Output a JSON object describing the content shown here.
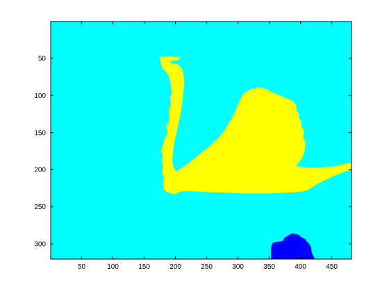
{
  "chart_data": {
    "type": "heatmap",
    "title": "",
    "xlabel": "",
    "ylabel": "",
    "xlim": [
      0.5,
      481.5
    ],
    "ylim": [
      320.5,
      0.5
    ],
    "y_direction": "reversed",
    "grid": false,
    "xticks": [
      50,
      100,
      150,
      200,
      250,
      300,
      350,
      400,
      450
    ],
    "yticks": [
      50,
      100,
      150,
      200,
      250,
      300
    ],
    "xtick_labels": [
      "50",
      "100",
      "150",
      "200",
      "250",
      "300",
      "350",
      "400",
      "450"
    ],
    "ytick_labels": [
      "50",
      "100",
      "150",
      "200",
      "250",
      "300"
    ],
    "colors": {
      "background": "#00ffff",
      "swan": "#ffff00",
      "rock": "#0000ff",
      "axes": "#000000"
    },
    "regions": [
      {
        "class": "background",
        "color": "#00ffff",
        "polygon": [
          [
            0.5,
            0.5
          ],
          [
            481.5,
            0.5
          ],
          [
            481.5,
            320.5
          ],
          [
            0.5,
            320.5
          ]
        ]
      },
      {
        "class": "swan",
        "color": "#ffff00",
        "polygon": [
          [
            174,
            48
          ],
          [
            188,
            47
          ],
          [
            198,
            48
          ],
          [
            208,
            49
          ],
          [
            203,
            53
          ],
          [
            195,
            53
          ],
          [
            190,
            56
          ],
          [
            195,
            57
          ],
          [
            203,
            58
          ],
          [
            210,
            63
          ],
          [
            213,
            72
          ],
          [
            214,
            85
          ],
          [
            212,
            100
          ],
          [
            210,
            115
          ],
          [
            207,
            130
          ],
          [
            203,
            145
          ],
          [
            199,
            160
          ],
          [
            196,
            175
          ],
          [
            195,
            188
          ],
          [
            197,
            198
          ],
          [
            202,
            202
          ],
          [
            213,
            196
          ],
          [
            233,
            183
          ],
          [
            252,
            170
          ],
          [
            268,
            158
          ],
          [
            280,
            145
          ],
          [
            290,
            131
          ],
          [
            298,
            117
          ],
          [
            304,
            104
          ],
          [
            311,
            96
          ],
          [
            322,
            91
          ],
          [
            334,
            89
          ],
          [
            345,
            91
          ],
          [
            355,
            96
          ],
          [
            367,
            100
          ],
          [
            378,
            104
          ],
          [
            388,
            108
          ],
          [
            394,
            114
          ],
          [
            393,
            120
          ],
          [
            398,
            125
          ],
          [
            397,
            130
          ],
          [
            402,
            136
          ],
          [
            401,
            142
          ],
          [
            406,
            148
          ],
          [
            404,
            155
          ],
          [
            408,
            163
          ],
          [
            407,
            172
          ],
          [
            405,
            180
          ],
          [
            401,
            186
          ],
          [
            397,
            190
          ],
          [
            393,
            195
          ],
          [
            410,
            197
          ],
          [
            430,
            197
          ],
          [
            448,
            196
          ],
          [
            463,
            194
          ],
          [
            475,
            191
          ],
          [
            481.5,
            191
          ],
          [
            481.5,
            200
          ],
          [
            470,
            203
          ],
          [
            455,
            208
          ],
          [
            440,
            214
          ],
          [
            427,
            219
          ],
          [
            418,
            224
          ],
          [
            410,
            228
          ],
          [
            400,
            230
          ],
          [
            380,
            231
          ],
          [
            350,
            232
          ],
          [
            310,
            232
          ],
          [
            275,
            231
          ],
          [
            245,
            230
          ],
          [
            225,
            229
          ],
          [
            210,
            229
          ],
          [
            203,
            231
          ],
          [
            200,
            233
          ],
          [
            193,
            232
          ],
          [
            186,
            230
          ],
          [
            182,
            227
          ],
          [
            180,
            220
          ],
          [
            182,
            212
          ],
          [
            179,
            205
          ],
          [
            180,
            195
          ],
          [
            178,
            188
          ],
          [
            180,
            181
          ],
          [
            177,
            174
          ],
          [
            180,
            166
          ],
          [
            183,
            158
          ],
          [
            187,
            150
          ],
          [
            185,
            142
          ],
          [
            190,
            134
          ],
          [
            190,
            128
          ],
          [
            189,
            120
          ],
          [
            193,
            112
          ],
          [
            191,
            104
          ],
          [
            194,
            96
          ],
          [
            193,
            88
          ],
          [
            191,
            80
          ],
          [
            190,
            75
          ],
          [
            186,
            69
          ],
          [
            180,
            64
          ],
          [
            176,
            57
          ],
          [
            176,
            52
          ]
        ]
      },
      {
        "class": "rock",
        "color": "#0000ff",
        "polygon": [
          [
            353,
            320.5
          ],
          [
            353,
            304
          ],
          [
            356,
            298
          ],
          [
            366,
            297
          ],
          [
            372,
            296
          ],
          [
            374,
            292
          ],
          [
            380,
            289
          ],
          [
            386,
            286
          ],
          [
            396,
            287
          ],
          [
            400,
            290
          ],
          [
            403,
            292
          ],
          [
            407,
            293
          ],
          [
            410,
            297
          ],
          [
            414,
            300
          ],
          [
            417,
            305
          ],
          [
            418,
            312
          ],
          [
            421,
            317
          ],
          [
            423,
            320.5
          ]
        ]
      }
    ]
  }
}
